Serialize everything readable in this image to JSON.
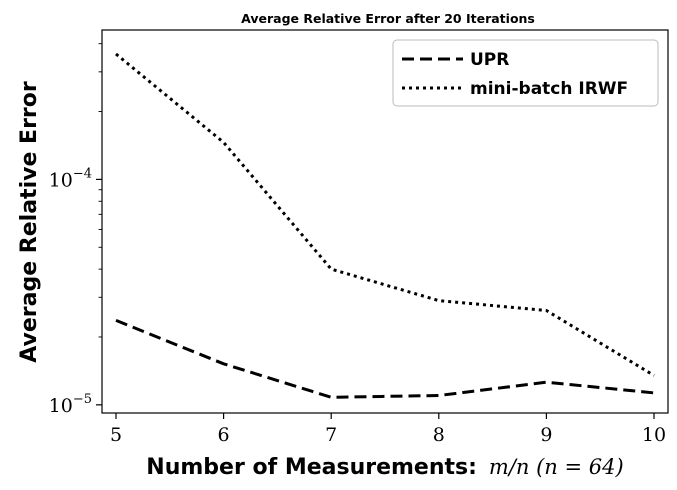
{
  "chart_data": {
    "type": "line",
    "title": "Average Relative Error after 20 Iterations",
    "xlabel": "Number of Measurements:",
    "xlabel_math": "m/n (n = 64)",
    "ylabel": "Average Relative Error",
    "yscale": "log",
    "x": [
      5,
      6,
      7,
      8,
      9,
      10
    ],
    "xlim": [
      4.87,
      10.13
    ],
    "ylim": [
      9.2e-06,
      0.00046
    ],
    "x_ticks": [
      "5",
      "6",
      "7",
      "8",
      "9",
      "10"
    ],
    "y_ticks": [
      {
        "value": 0.0001,
        "base": "10",
        "exp": "−4"
      },
      {
        "value": 1e-05,
        "base": "10",
        "exp": "−5"
      }
    ],
    "grid": false,
    "legend_position": "top-right",
    "series": [
      {
        "name": "UPR",
        "style": "dashed",
        "color": "#000000",
        "values": [
          2.37e-05,
          1.52e-05,
          1.08e-05,
          1.1e-05,
          1.26e-05,
          1.13e-05
        ]
      },
      {
        "name": "mini-batch IRWF",
        "style": "dotted",
        "color": "#000000",
        "values": [
          0.00036,
          0.000146,
          4e-05,
          2.9e-05,
          2.62e-05,
          1.35e-05
        ]
      }
    ]
  }
}
